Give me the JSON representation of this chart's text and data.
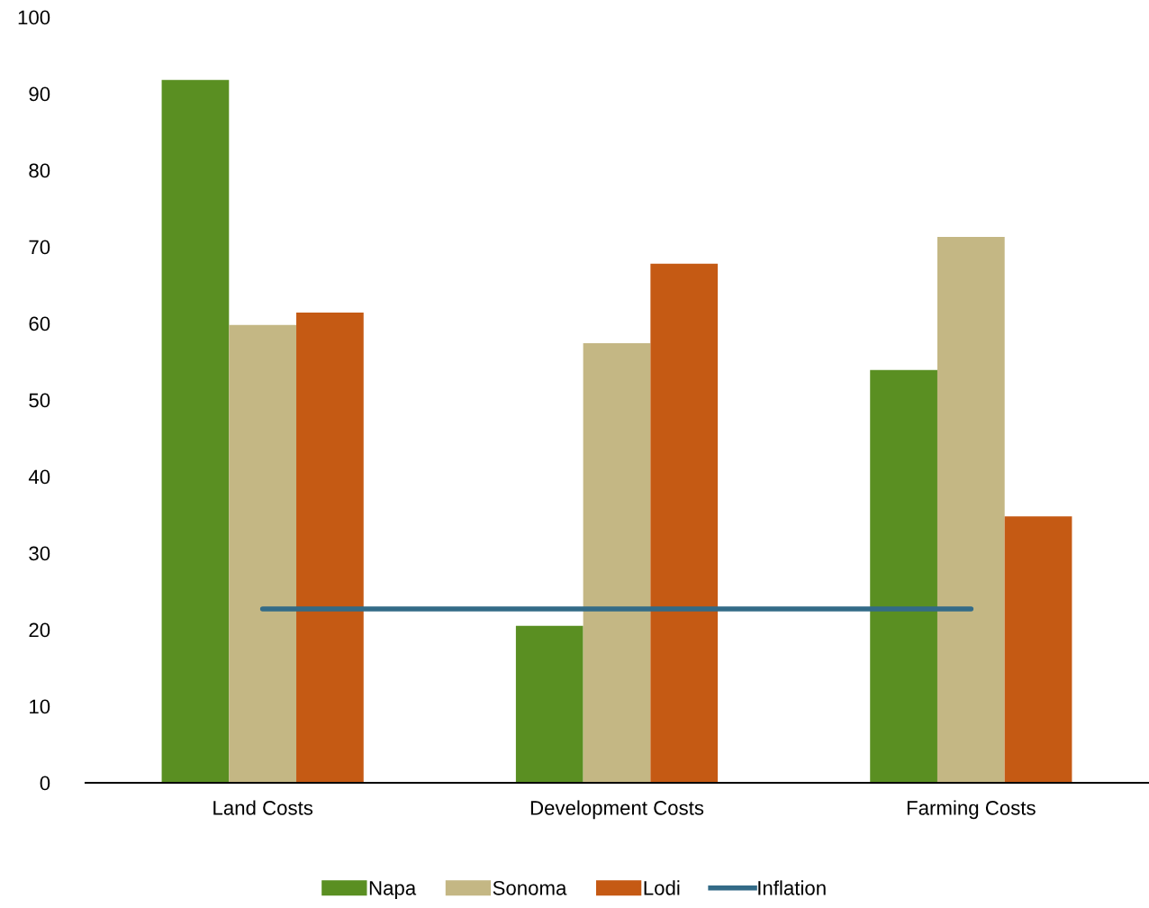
{
  "chart_data": {
    "type": "bar",
    "categories": [
      "Land Costs",
      "Development Costs",
      "Farming Costs"
    ],
    "series": [
      {
        "name": "Napa",
        "color": "#5a8f22",
        "values": [
          91.8,
          20.5,
          53.9
        ]
      },
      {
        "name": "Sonoma",
        "color": "#c4b784",
        "values": [
          59.8,
          57.4,
          71.3
        ]
      },
      {
        "name": "Lodi",
        "color": "#c55a14",
        "values": [
          61.4,
          67.8,
          34.8
        ]
      },
      {
        "name": "Inflation",
        "type": "line",
        "color": "#336b87",
        "values": [
          22.7,
          22.7,
          22.7
        ]
      }
    ],
    "ylim": [
      0,
      100
    ],
    "yticks": [
      0,
      10,
      20,
      30,
      40,
      50,
      60,
      70,
      80,
      90,
      100
    ],
    "grid": false,
    "legend": "bottom"
  }
}
